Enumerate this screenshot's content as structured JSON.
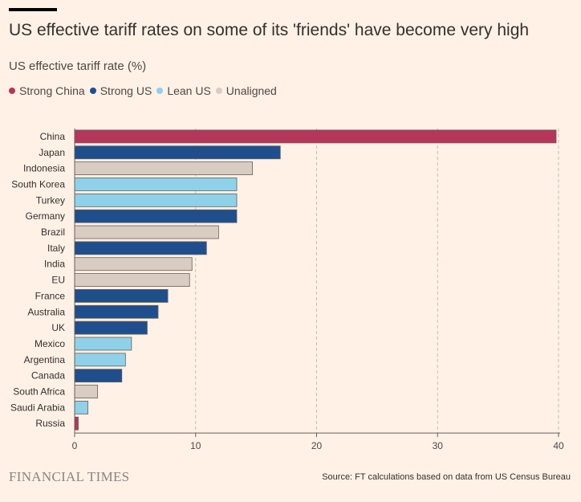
{
  "header": {
    "title": "US effective tariff rates on some of its 'friends' have become very high",
    "subtitle": "US effective tariff rate (%)"
  },
  "legend": [
    {
      "label": "Strong China",
      "color": "#B5365B"
    },
    {
      "label": "Strong US",
      "color": "#1F4E8C"
    },
    {
      "label": "Lean US",
      "color": "#8FD1E8"
    },
    {
      "label": "Unaligned",
      "color": "#D9CCC3"
    }
  ],
  "footer": {
    "brand": "FINANCIAL TIMES",
    "source": "Source: FT calculations based on data from US Census Bureau"
  },
  "chart_data": {
    "type": "bar",
    "orientation": "horizontal",
    "categories": [
      "China",
      "Japan",
      "Indonesia",
      "South Korea",
      "Turkey",
      "Germany",
      "Brazil",
      "Italy",
      "India",
      "EU",
      "France",
      "Australia",
      "UK",
      "Mexico",
      "Argentina",
      "Canada",
      "South Africa",
      "Saudi Arabia",
      "Russia"
    ],
    "values": [
      39.8,
      17.0,
      14.7,
      13.4,
      13.4,
      13.4,
      11.9,
      10.9,
      9.7,
      9.5,
      7.7,
      6.9,
      6.0,
      4.7,
      4.2,
      3.9,
      1.9,
      1.1,
      0.3
    ],
    "groups": [
      "Strong China",
      "Strong US",
      "Unaligned",
      "Lean US",
      "Lean US",
      "Strong US",
      "Unaligned",
      "Strong US",
      "Unaligned",
      "Unaligned",
      "Strong US",
      "Strong US",
      "Strong US",
      "Lean US",
      "Lean US",
      "Strong US",
      "Unaligned",
      "Lean US",
      "Strong China"
    ],
    "xlim": [
      0,
      40
    ],
    "xticks": [
      0,
      10,
      20,
      30,
      40
    ],
    "grid": true,
    "legend_position": "top-left"
  }
}
